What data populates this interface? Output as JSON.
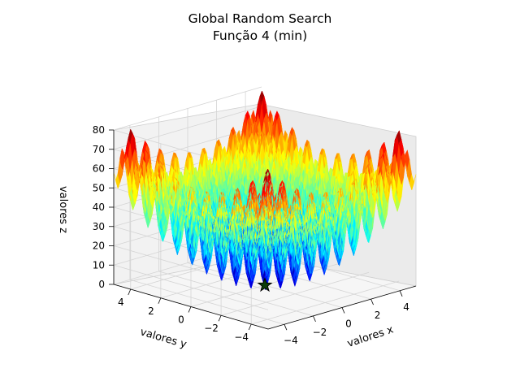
{
  "chart_data": {
    "type": "surface3d",
    "title": "Global Random Search",
    "subtitle": "Função 4 (min)",
    "xlabel": "valores x",
    "ylabel": "valores y",
    "zlabel": "valores z",
    "xlim": [
      -5.12,
      5.12
    ],
    "ylim": [
      -5.12,
      5.12
    ],
    "zlim": [
      0,
      80
    ],
    "xticks": [
      "−4",
      "−2",
      "0",
      "2",
      "4"
    ],
    "yticks": [
      "4",
      "2",
      "0",
      "−2",
      "−4"
    ],
    "zticks": [
      "0",
      "10",
      "20",
      "30",
      "40",
      "50",
      "60",
      "70",
      "80"
    ],
    "colormap": "jet",
    "grid": true,
    "best_point": {
      "x": 0,
      "y": 0,
      "z": 0,
      "marker": "star"
    },
    "colors": {
      "pane": "#f2f2f2",
      "grid": "#d0d0d0",
      "marker_fill": "#0b3d0b"
    }
  }
}
